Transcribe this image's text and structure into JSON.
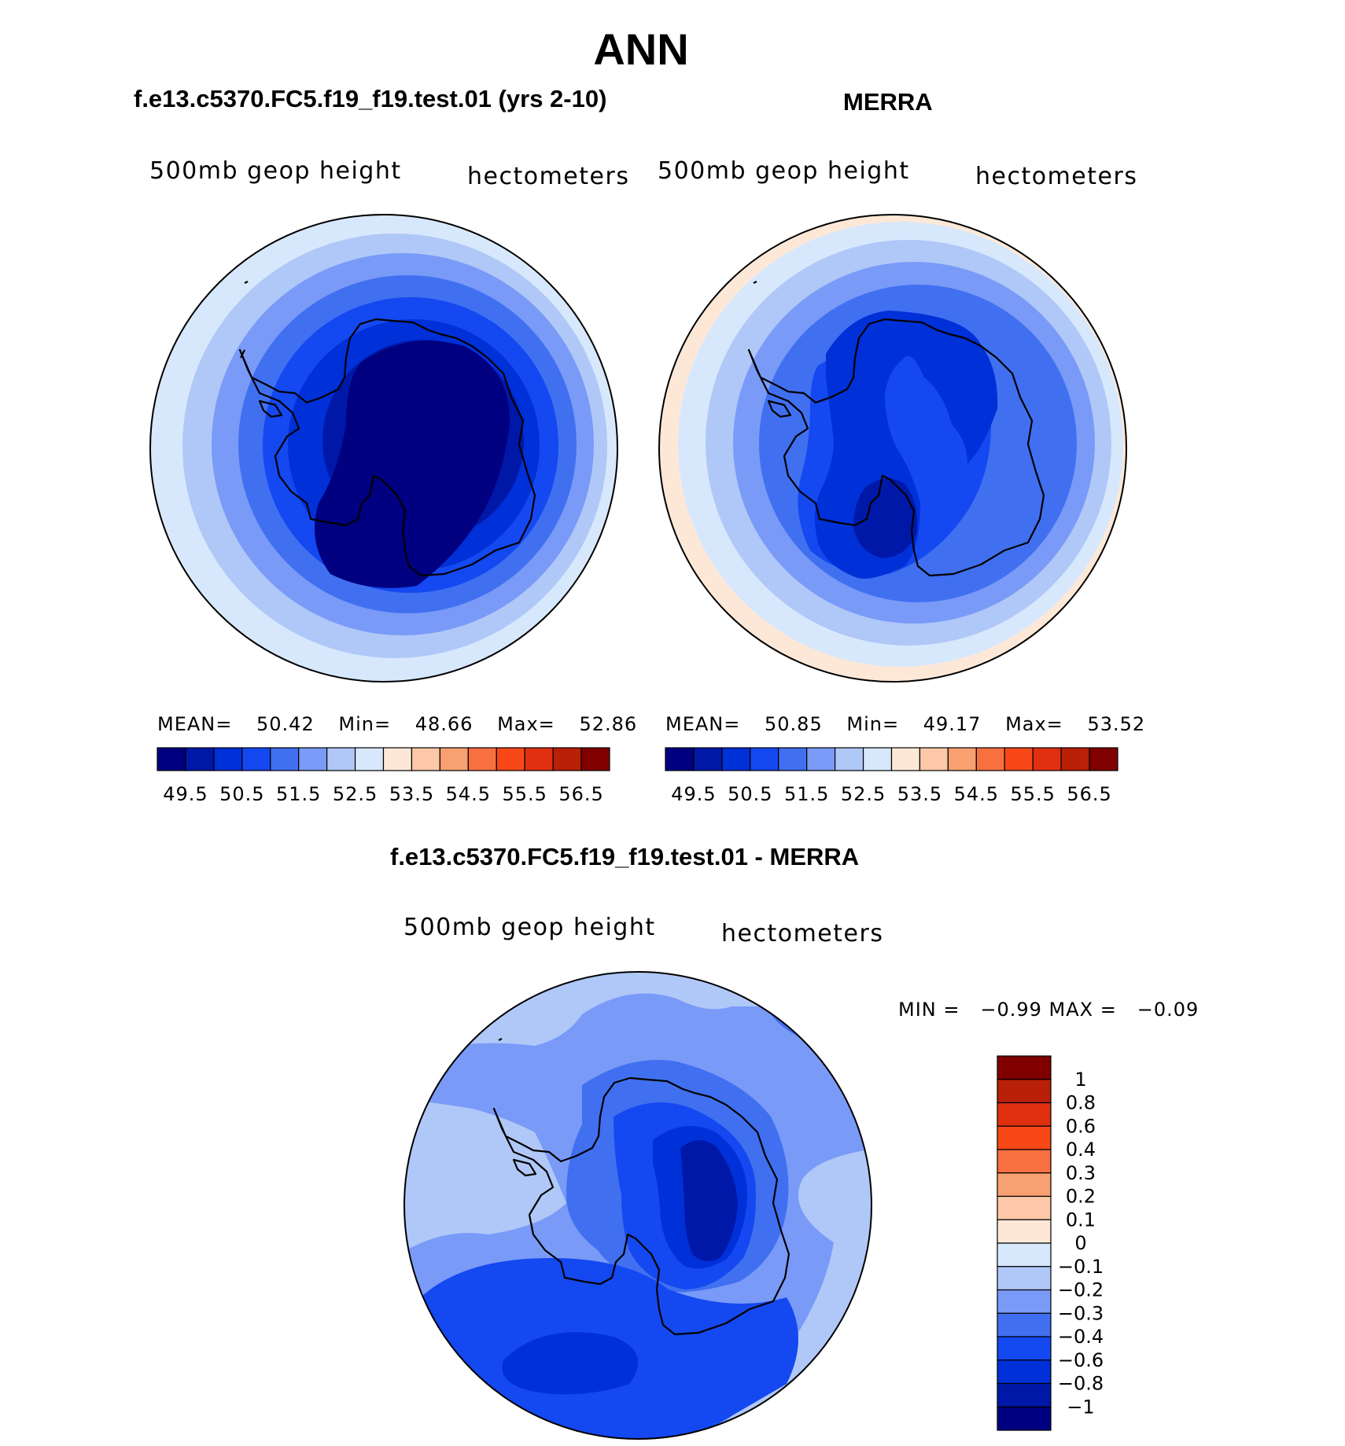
{
  "page": {
    "title": "ANN",
    "diff_title": "f.e13.c5370.FC5.f19_f19.test.01 - MERRA"
  },
  "panels": [
    {
      "id": "model",
      "title": "f.e13.c5370.FC5.f19_f19.test.01 (yrs 2-10)",
      "variable": "500mb geop height",
      "units": "hectometers",
      "stats": {
        "mean_label": "MEAN=",
        "mean": "50.42",
        "min_label": "Min=",
        "min": "48.66",
        "max_label": "Max=",
        "max": "52.86"
      },
      "center_value": 48.66,
      "edge_value": 52.86
    },
    {
      "id": "merra",
      "title": "MERRA",
      "variable": "500mb geop height",
      "units": "hectometers",
      "stats": {
        "mean_label": "MEAN=",
        "mean": "50.85",
        "min_label": "Min=",
        "min": "49.17",
        "max_label": "Max=",
        "max": "53.52"
      },
      "center_value": 49.17,
      "edge_value": 53.52
    }
  ],
  "diff_panel": {
    "variable": "500mb geop height",
    "units": "hectometers",
    "stats_text": "MIN =   −0.99 MAX =   −0.09"
  },
  "colorbar_main": {
    "colors": [
      "#000080",
      "#0018a8",
      "#0030d8",
      "#1448f0",
      "#4070f0",
      "#7a9af8",
      "#b0c8f8",
      "#d8e8fc",
      "#fde8d8",
      "#fcc8a8",
      "#f8a070",
      "#f87040",
      "#f84818",
      "#e03010",
      "#b82008",
      "#800000"
    ],
    "labels": [
      "49.5",
      "50.5",
      "51.5",
      "52.5",
      "53.5",
      "54.5",
      "55.5",
      "56.5"
    ]
  },
  "colorbar_diff": {
    "colors_top_to_bottom": [
      "#800000",
      "#b82008",
      "#e03010",
      "#f84818",
      "#f87040",
      "#f8a070",
      "#fcc8a8",
      "#fde8d8",
      "#d8e8fc",
      "#b0c8f8",
      "#7a9af8",
      "#4070f0",
      "#1448f0",
      "#0030d8",
      "#0018a8",
      "#000080"
    ],
    "labels": [
      "1",
      "0.8",
      "0.6",
      "0.4",
      "0.3",
      "0.2",
      "0.1",
      "0",
      "−0.1",
      "−0.2",
      "−0.3",
      "−0.4",
      "−0.6",
      "−0.8",
      "−1"
    ]
  },
  "colors": {
    "outline": "#000000",
    "coast": "#000000"
  }
}
